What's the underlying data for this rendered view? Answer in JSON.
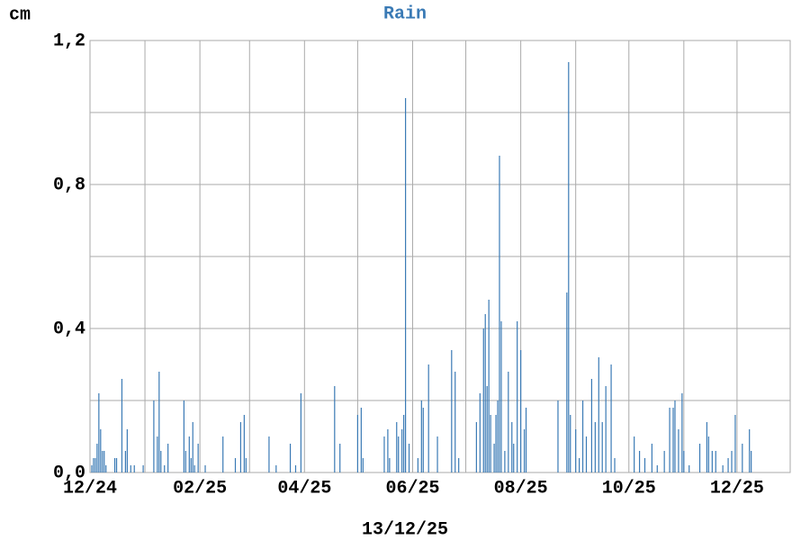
{
  "chart_data": {
    "type": "bar",
    "title": "Rain",
    "y_label": "cm",
    "x_label": "13/12/25",
    "x": [
      1,
      2,
      3,
      4,
      5,
      6,
      7,
      8,
      9,
      14,
      15,
      18,
      20,
      21,
      23,
      25,
      30,
      36,
      38,
      39,
      40,
      42,
      44,
      53,
      54,
      56,
      57,
      58,
      59,
      61,
      65,
      75,
      82,
      85,
      87,
      88,
      101,
      105,
      113,
      116,
      119,
      138,
      141,
      151,
      153,
      154,
      166,
      168,
      169,
      173,
      174,
      176,
      177,
      178,
      180,
      185,
      187,
      188,
      191,
      196,
      204,
      206,
      208,
      218,
      220,
      222,
      223,
      224,
      225,
      226,
      228,
      229,
      230,
      231,
      232,
      234,
      236,
      238,
      239,
      241,
      243,
      245,
      246,
      264,
      269,
      270,
      271,
      274,
      276,
      278,
      280,
      283,
      285,
      287,
      289,
      291,
      294,
      296,
      307,
      310,
      313,
      317,
      320,
      324,
      327,
      329,
      330,
      332,
      334,
      335,
      338,
      344,
      348,
      349,
      351,
      353,
      357,
      360,
      362,
      364,
      368,
      372,
      373
    ],
    "values": [
      0.02,
      0.04,
      0.04,
      0.08,
      0.22,
      0.12,
      0.06,
      0.06,
      0.02,
      0.04,
      0.04,
      0.26,
      0.06,
      0.12,
      0.02,
      0.02,
      0.02,
      0.2,
      0.1,
      0.28,
      0.06,
      0.02,
      0.08,
      0.2,
      0.06,
      0.1,
      0.04,
      0.14,
      0.02,
      0.08,
      0.02,
      0.1,
      0.04,
      0.14,
      0.16,
      0.04,
      0.1,
      0.02,
      0.08,
      0.02,
      0.22,
      0.24,
      0.08,
      0.16,
      0.18,
      0.04,
      0.1,
      0.12,
      0.04,
      0.14,
      0.1,
      0.12,
      0.16,
      1.04,
      0.08,
      0.04,
      0.2,
      0.18,
      0.3,
      0.1,
      0.34,
      0.28,
      0.04,
      0.14,
      0.22,
      0.4,
      0.44,
      0.24,
      0.48,
      0.16,
      0.08,
      0.16,
      0.2,
      0.88,
      0.42,
      0.06,
      0.28,
      0.14,
      0.08,
      0.42,
      0.34,
      0.12,
      0.18,
      0.2,
      0.5,
      1.14,
      0.16,
      0.12,
      0.04,
      0.2,
      0.1,
      0.26,
      0.14,
      0.32,
      0.14,
      0.24,
      0.3,
      0.04,
      0.1,
      0.06,
      0.04,
      0.08,
      0.02,
      0.06,
      0.18,
      0.18,
      0.2,
      0.12,
      0.22,
      0.06,
      0.02,
      0.08,
      0.14,
      0.1,
      0.06,
      0.06,
      0.02,
      0.04,
      0.06,
      0.16,
      0.08,
      0.12,
      0.06
    ],
    "color": "#3a7ab5",
    "xlim": [
      0,
      395
    ],
    "xticks": [
      {
        "value": 0,
        "label": "12/24"
      },
      {
        "value": 31,
        "label": null
      },
      {
        "value": 62,
        "label": "02/25"
      },
      {
        "value": 90,
        "label": null
      },
      {
        "value": 121,
        "label": "04/25"
      },
      {
        "value": 151,
        "label": null
      },
      {
        "value": 182,
        "label": "06/25"
      },
      {
        "value": 212,
        "label": null
      },
      {
        "value": 243,
        "label": "08/25"
      },
      {
        "value": 274,
        "label": null
      },
      {
        "value": 304,
        "label": "10/25"
      },
      {
        "value": 335,
        "label": null
      },
      {
        "value": 365,
        "label": "12/25"
      }
    ],
    "ylim": [
      0,
      1.2
    ],
    "yticks": [
      {
        "value": 0,
        "label": "0,0"
      },
      {
        "value": 0.2,
        "label": null
      },
      {
        "value": 0.4,
        "label": "0,4"
      },
      {
        "value": 0.6,
        "label": null
      },
      {
        "value": 0.8,
        "label": "0,8"
      },
      {
        "value": 1.0,
        "label": null
      },
      {
        "value": 1.2,
        "label": "1,2"
      }
    ],
    "grid": true
  }
}
